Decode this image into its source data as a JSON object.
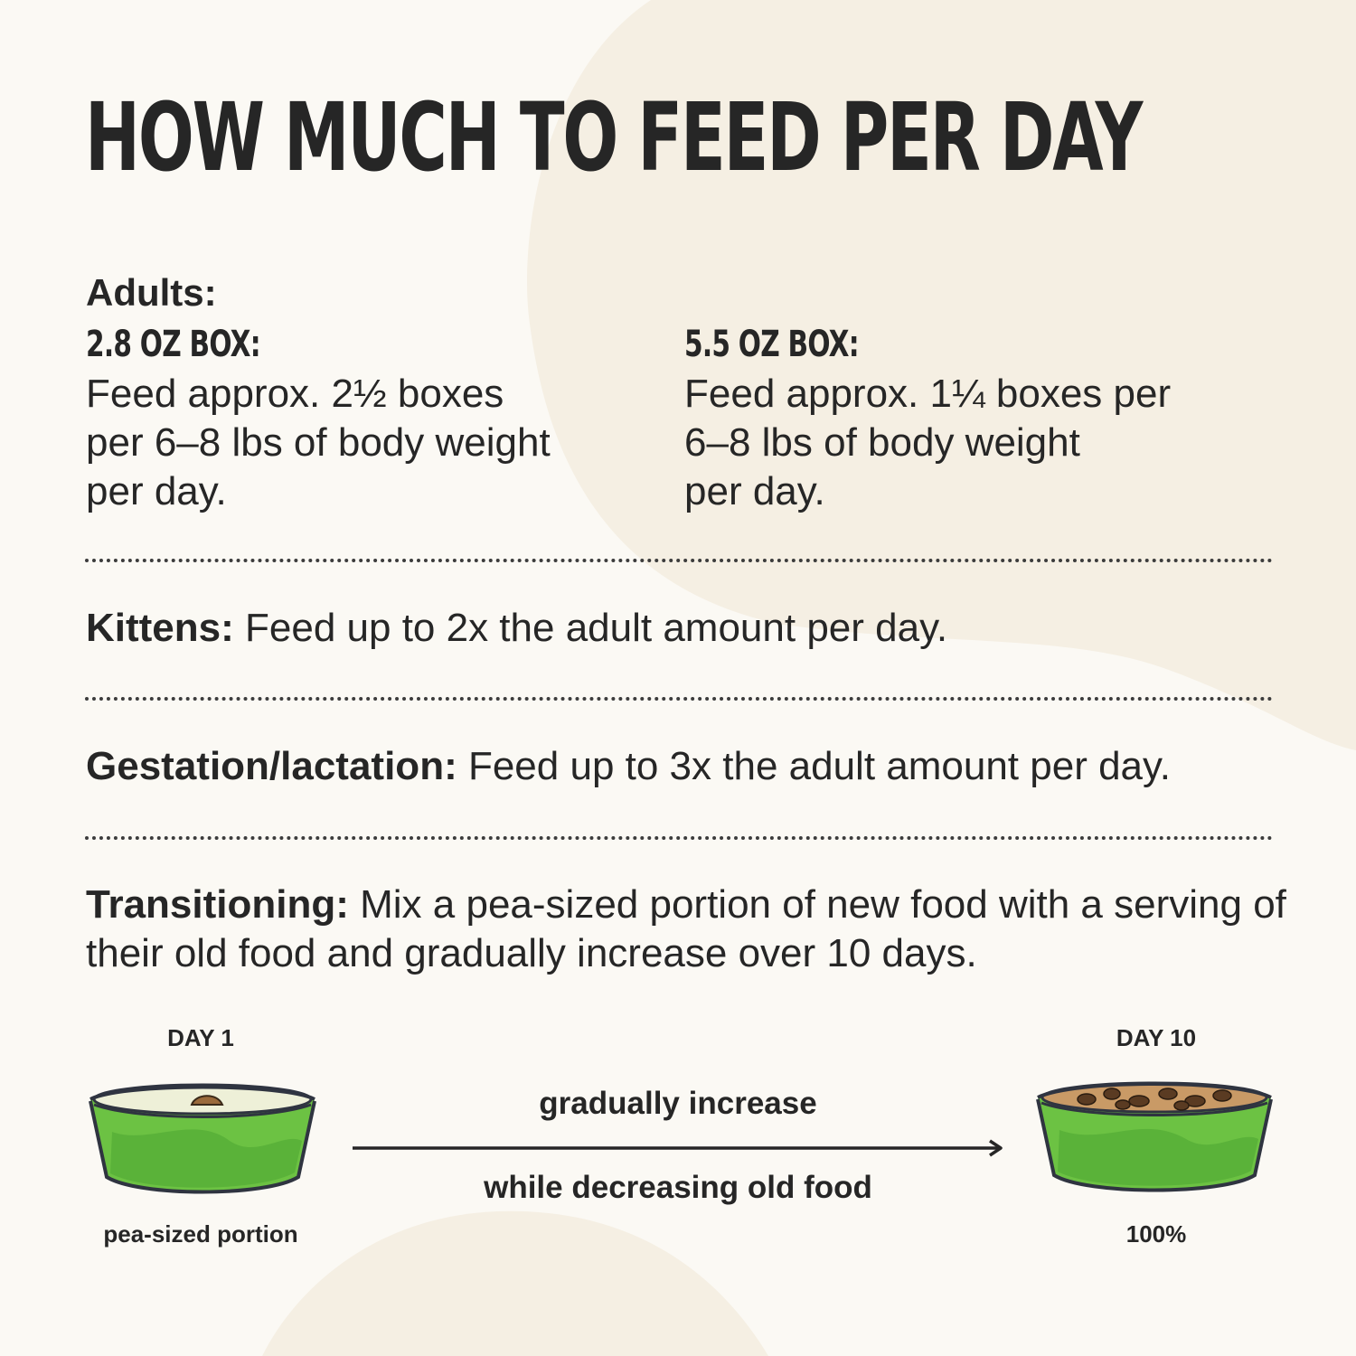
{
  "title": "HOW MUCH TO FEED PER DAY",
  "adults": {
    "label": "Adults:",
    "boxes": [
      {
        "title": "2.8 OZ BOX:",
        "text": "Feed approx. 2½ boxes\nper 6–8 lbs of body weight\nper day."
      },
      {
        "title": "5.5 OZ BOX:",
        "text": "Feed approx. 1¼ boxes per\n6–8 lbs of body weight\nper day."
      }
    ]
  },
  "kittens": {
    "label": "Kittens:",
    "text": "Feed up to 2x the adult amount per day."
  },
  "gestation": {
    "label": "Gestation/lactation:",
    "text": "Feed up to 3x the adult amount per day."
  },
  "transitioning": {
    "label": "Transitioning:",
    "text": "Mix a pea-sized portion of new food with a serving of their old food and gradually increase over 10 days."
  },
  "transition_diagram": {
    "start_day": "DAY 1",
    "end_day": "DAY 10",
    "start_caption": "pea-sized portion",
    "end_caption": "100%",
    "arrow_top": "gradually increase",
    "arrow_bottom": "while decreasing old food"
  },
  "colors": {
    "background": "#fbf9f4",
    "blob": "#f5efe3",
    "text": "#262626",
    "bowl_green": "#6cc243",
    "bowl_outline": "#2f3440",
    "food_brown": "#9a6a3c"
  }
}
